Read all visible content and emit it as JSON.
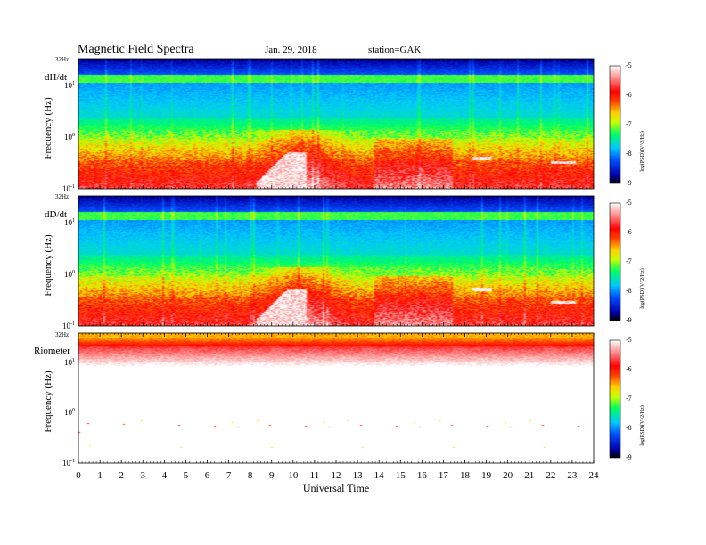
{
  "header": {
    "title": "Magnetic  Field  Spectra",
    "date": "Jan. 29, 2018",
    "station": "station=GAK"
  },
  "chart_data": {
    "type": "heatmap",
    "xlabel": "Universal Time",
    "x_ticks": [
      "0",
      "1",
      "2",
      "3",
      "4",
      "5",
      "6",
      "7",
      "8",
      "9",
      "10",
      "11",
      "12",
      "13",
      "14",
      "15",
      "16",
      "17",
      "18",
      "19",
      "20",
      "21",
      "22",
      "23",
      "24"
    ],
    "xlim": [
      0,
      24
    ],
    "ylim_hz": [
      0.1,
      32
    ],
    "y_scale": "log",
    "colorbar": {
      "label": "log(PSD)(V^2/Hz)",
      "ticks": [
        "-5",
        "-6",
        "-7",
        "-8",
        "-9"
      ],
      "range": [
        -9,
        -5
      ],
      "colors": [
        "#000066",
        "#0000ff",
        "#0080ff",
        "#00ffff",
        "#00ff00",
        "#ffff00",
        "#ff8000",
        "#ff0000",
        "#ff8080",
        "#ffffff"
      ]
    },
    "panels": [
      {
        "id": "dHdt",
        "name": "dH/dt",
        "ylabel": "Frequency  (Hz)",
        "top_label": "32Hz",
        "y_ticks": [
          {
            "mantissa": "10",
            "exp": "1",
            "hz": 10
          },
          {
            "mantissa": "10",
            "exp": "0",
            "hz": 1
          },
          {
            "mantissa": "10",
            "exp": "-1",
            "hz": 0.1
          }
        ]
      },
      {
        "id": "dDdt",
        "name": "dD/dt",
        "ylabel": "Frequency  (Hz)",
        "top_label": "32Hz",
        "y_ticks": [
          {
            "mantissa": "10",
            "exp": "1",
            "hz": 10
          },
          {
            "mantissa": "10",
            "exp": "0",
            "hz": 1
          },
          {
            "mantissa": "10",
            "exp": "-1",
            "hz": 0.1
          }
        ]
      },
      {
        "id": "riometer",
        "name": "Riometer",
        "ylabel": "Frequency  (Hz)",
        "top_label": "32Hz",
        "y_ticks": [
          {
            "mantissa": "10",
            "exp": "1",
            "hz": 10
          },
          {
            "mantissa": "10",
            "exp": "0",
            "hz": 1
          },
          {
            "mantissa": "10",
            "exp": "-1",
            "hz": 0.1
          }
        ]
      }
    ]
  }
}
